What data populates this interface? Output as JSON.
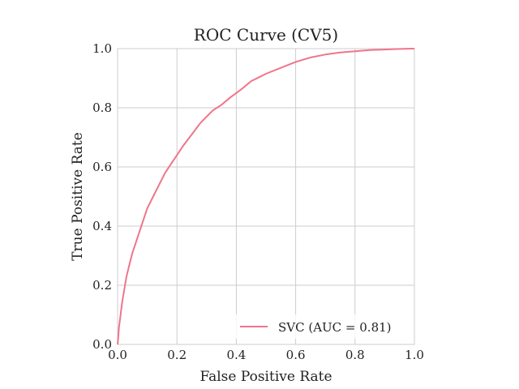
{
  "chart_data": {
    "type": "line",
    "title": "ROC Curve (CV5)",
    "xlabel": "False Positive Rate",
    "ylabel": "True Positive Rate",
    "xlim": [
      0.0,
      1.0
    ],
    "ylim": [
      0.0,
      1.0
    ],
    "xticks": [
      "0.0",
      "0.2",
      "0.4",
      "0.6",
      "0.8",
      "1.0"
    ],
    "yticks": [
      "0.0",
      "0.2",
      "0.4",
      "0.6",
      "0.8",
      "1.0"
    ],
    "grid": true,
    "legend_position": "lower-right",
    "series": [
      {
        "name": "SVC (AUC = 0.81)",
        "color": "#f0758a",
        "x": [
          0.0,
          0.002,
          0.005,
          0.01,
          0.015,
          0.02,
          0.03,
          0.04,
          0.05,
          0.06,
          0.07,
          0.08,
          0.09,
          0.1,
          0.12,
          0.14,
          0.16,
          0.18,
          0.2,
          0.22,
          0.25,
          0.28,
          0.3,
          0.32,
          0.35,
          0.38,
          0.4,
          0.42,
          0.45,
          0.48,
          0.5,
          0.55,
          0.6,
          0.65,
          0.7,
          0.75,
          0.8,
          0.85,
          0.9,
          0.95,
          1.0
        ],
        "y": [
          0.0,
          0.02,
          0.06,
          0.1,
          0.14,
          0.17,
          0.23,
          0.27,
          0.31,
          0.34,
          0.37,
          0.4,
          0.43,
          0.46,
          0.5,
          0.54,
          0.58,
          0.61,
          0.64,
          0.67,
          0.71,
          0.75,
          0.77,
          0.79,
          0.81,
          0.835,
          0.85,
          0.865,
          0.89,
          0.905,
          0.915,
          0.935,
          0.955,
          0.97,
          0.98,
          0.987,
          0.991,
          0.995,
          0.997,
          0.999,
          1.0
        ]
      }
    ]
  }
}
